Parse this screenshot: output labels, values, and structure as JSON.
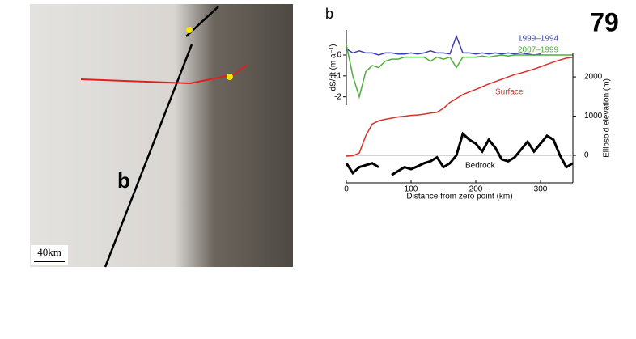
{
  "panel_number": "79",
  "map": {
    "label": "b",
    "scale": "40km"
  },
  "panel_label": "b",
  "chart_data": [
    {
      "type": "line",
      "ylabel": "dS/dt (m a⁻¹)",
      "x": [
        0,
        10,
        20,
        30,
        40,
        50,
        60,
        70,
        80,
        90,
        100,
        110,
        120,
        130,
        140,
        150,
        160,
        170,
        180,
        190,
        200,
        210,
        220,
        230,
        240,
        250,
        260,
        270,
        280,
        290,
        300,
        310,
        320,
        330,
        340,
        350
      ],
      "xlim": [
        0,
        350
      ],
      "ylim": [
        -2.4,
        1.2
      ],
      "yticks": [
        -2,
        -1,
        0
      ],
      "series": [
        {
          "name": "1999–1994",
          "color": "#3b3fae",
          "values": [
            0.3,
            0.1,
            0.2,
            0.1,
            0.1,
            0.0,
            0.1,
            0.1,
            0.05,
            0.05,
            0.1,
            0.05,
            0.1,
            0.2,
            0.1,
            0.1,
            0.05,
            0.9,
            0.1,
            0.1,
            0.05,
            0.1,
            0.05,
            0.1,
            0.05,
            0.1,
            0.05,
            0.1,
            0.05,
            0.0,
            0.05,
            null,
            null,
            null,
            null,
            null
          ]
        },
        {
          "name": "2007–1999",
          "color": "#4caf3a",
          "values": [
            0.5,
            -1.0,
            -2.0,
            -0.8,
            -0.5,
            -0.6,
            -0.3,
            -0.2,
            -0.2,
            -0.1,
            -0.1,
            -0.1,
            -0.1,
            -0.3,
            -0.1,
            -0.2,
            -0.1,
            -0.6,
            -0.1,
            -0.1,
            -0.1,
            -0.05,
            -0.1,
            -0.05,
            0.0,
            -0.05,
            0.0,
            0.0,
            0.0,
            0.0,
            0.0,
            0.0,
            0.0,
            0.0,
            0.0,
            0.0
          ]
        }
      ]
    },
    {
      "type": "line",
      "xlabel": "Distance from zero point (km)",
      "ylabel": "Ellipsoid elevation (m)",
      "x": [
        0,
        10,
        20,
        30,
        40,
        50,
        60,
        70,
        80,
        90,
        100,
        110,
        120,
        130,
        140,
        150,
        160,
        170,
        180,
        190,
        200,
        210,
        220,
        230,
        240,
        250,
        260,
        270,
        280,
        290,
        300,
        310,
        320,
        330,
        340,
        350
      ],
      "xlim": [
        0,
        350
      ],
      "xticks": [
        0,
        100,
        200,
        300
      ],
      "ylim": [
        -700,
        2600
      ],
      "yticks": [
        0,
        1000,
        2000
      ],
      "series": [
        {
          "name": "Surface",
          "color": "#d9302a",
          "values": [
            -20,
            -10,
            60,
            500,
            800,
            880,
            920,
            950,
            980,
            1000,
            1020,
            1030,
            1050,
            1080,
            1100,
            1200,
            1350,
            1450,
            1550,
            1620,
            1680,
            1750,
            1820,
            1880,
            1940,
            2000,
            2060,
            2100,
            2150,
            2200,
            2260,
            2320,
            2380,
            2430,
            2480,
            2500
          ]
        },
        {
          "name": "Bedrock",
          "color": "#000000",
          "values": [
            -200,
            -450,
            -300,
            -250,
            -200,
            -300,
            null,
            -500,
            -400,
            -300,
            -350,
            -280,
            -200,
            -150,
            -50,
            -300,
            -200,
            0,
            550,
            400,
            300,
            100,
            400,
            200,
            -100,
            -150,
            -50,
            150,
            350,
            100,
            300,
            500,
            400,
            0,
            -300,
            -200
          ]
        }
      ]
    }
  ]
}
